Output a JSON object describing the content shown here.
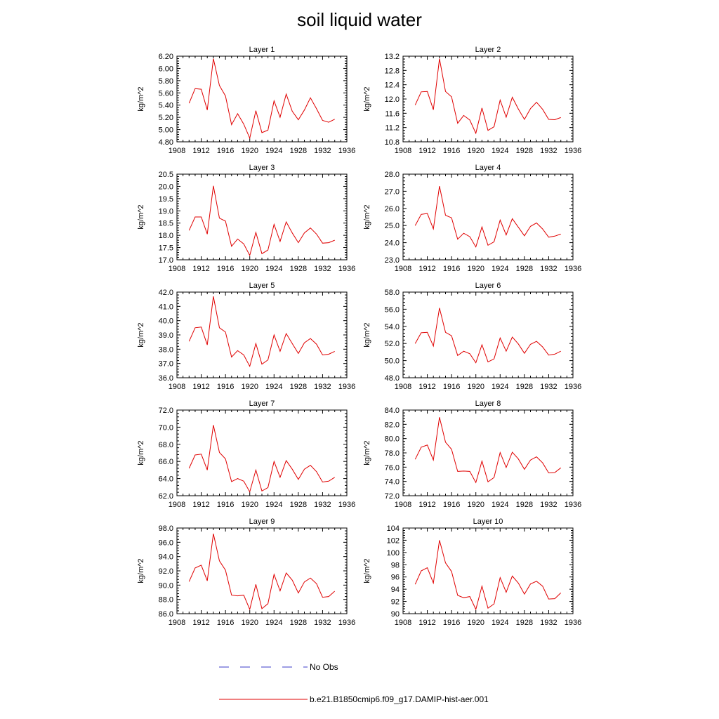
{
  "figure": {
    "title": "soil liquid water",
    "legend": [
      {
        "label": "No Obs",
        "color": "#3b3bc8",
        "style": "dashed"
      },
      {
        "label": "b.e21.B1850cmip6.f09_g17.DAMIP-hist-aer.001",
        "color": "#e00000",
        "style": "solid"
      }
    ]
  },
  "chart_data": [
    {
      "type": "line",
      "title": "Layer 1",
      "ylabel": "kg/m^2",
      "xlim": [
        1908,
        1936
      ],
      "xticks": [
        "1908",
        "1912",
        "1916",
        "1920",
        "1924",
        "1928",
        "1932",
        "1936"
      ],
      "ylim": [
        4.8,
        6.2
      ],
      "yticks": [
        "4.80",
        "5.00",
        "5.20",
        "5.40",
        "5.60",
        "5.80",
        "6.00",
        "6.20"
      ],
      "series": [
        {
          "color": "#e00000",
          "x": [
            1910,
            1911,
            1912,
            1913,
            1914,
            1915,
            1916,
            1917,
            1918,
            1919,
            1920,
            1921,
            1922,
            1923,
            1924,
            1925,
            1926,
            1927,
            1928,
            1929,
            1930,
            1931,
            1932,
            1933,
            1934
          ],
          "values": [
            5.43,
            5.67,
            5.66,
            5.32,
            6.16,
            5.72,
            5.55,
            5.08,
            5.26,
            5.09,
            4.86,
            5.31,
            4.95,
            4.99,
            5.47,
            5.2,
            5.58,
            5.3,
            5.16,
            5.32,
            5.52,
            5.34,
            5.15,
            5.12,
            5.17
          ]
        }
      ]
    },
    {
      "type": "line",
      "title": "Layer 2",
      "ylabel": "kg/m^2",
      "xlim": [
        1908,
        1936
      ],
      "xticks": [
        "1908",
        "1912",
        "1916",
        "1920",
        "1924",
        "1928",
        "1932",
        "1936"
      ],
      "ylim": [
        10.8,
        13.2
      ],
      "yticks": [
        "10.8",
        "11.2",
        "11.6",
        "12.0",
        "12.4",
        "12.8",
        "13.2"
      ],
      "series": [
        {
          "color": "#e00000",
          "x": [
            1910,
            1911,
            1912,
            1913,
            1914,
            1915,
            1916,
            1917,
            1918,
            1919,
            1920,
            1921,
            1922,
            1923,
            1924,
            1925,
            1926,
            1927,
            1928,
            1929,
            1930,
            1931,
            1932,
            1933,
            1934
          ],
          "values": [
            11.83,
            12.2,
            12.21,
            11.7,
            13.13,
            12.21,
            12.06,
            11.32,
            11.54,
            11.41,
            11.04,
            11.75,
            11.12,
            11.22,
            11.97,
            11.49,
            12.05,
            11.72,
            11.43,
            11.73,
            11.91,
            11.71,
            11.43,
            11.42,
            11.48
          ]
        }
      ]
    },
    {
      "type": "line",
      "title": "Layer 3",
      "ylabel": "kg/m^2",
      "xlim": [
        1908,
        1936
      ],
      "xticks": [
        "1908",
        "1912",
        "1916",
        "1920",
        "1924",
        "1928",
        "1932",
        "1936"
      ],
      "ylim": [
        17.0,
        20.5
      ],
      "yticks": [
        "17.0",
        "17.5",
        "18.0",
        "18.5",
        "19.0",
        "19.5",
        "20.0",
        "20.5"
      ],
      "series": [
        {
          "color": "#e00000",
          "x": [
            1910,
            1911,
            1912,
            1913,
            1914,
            1915,
            1916,
            1917,
            1918,
            1919,
            1920,
            1921,
            1922,
            1923,
            1924,
            1925,
            1926,
            1927,
            1928,
            1929,
            1930,
            1931,
            1932,
            1933,
            1934
          ],
          "values": [
            18.2,
            18.75,
            18.75,
            18.05,
            20.02,
            18.7,
            18.58,
            17.55,
            17.85,
            17.65,
            17.18,
            18.12,
            17.25,
            17.4,
            18.45,
            17.75,
            18.55,
            18.1,
            17.7,
            18.1,
            18.3,
            18.05,
            17.68,
            17.7,
            17.8
          ]
        }
      ]
    },
    {
      "type": "line",
      "title": "Layer 4",
      "ylabel": "kg/m^2",
      "xlim": [
        1908,
        1936
      ],
      "xticks": [
        "1908",
        "1912",
        "1916",
        "1920",
        "1924",
        "1928",
        "1932",
        "1936"
      ],
      "ylim": [
        23.0,
        28.0
      ],
      "yticks": [
        "23.0",
        "24.0",
        "25.0",
        "26.0",
        "27.0",
        "28.0"
      ],
      "series": [
        {
          "color": "#e00000",
          "x": [
            1910,
            1911,
            1912,
            1913,
            1914,
            1915,
            1916,
            1917,
            1918,
            1919,
            1920,
            1921,
            1922,
            1923,
            1924,
            1925,
            1926,
            1927,
            1928,
            1929,
            1930,
            1931,
            1932,
            1933,
            1934
          ],
          "values": [
            25.0,
            25.65,
            25.7,
            24.8,
            27.3,
            25.6,
            25.45,
            24.2,
            24.55,
            24.35,
            23.75,
            24.92,
            23.85,
            24.05,
            25.32,
            24.45,
            25.4,
            24.9,
            24.4,
            24.95,
            25.15,
            24.8,
            24.32,
            24.38,
            24.5
          ]
        }
      ]
    },
    {
      "type": "line",
      "title": "Layer 5",
      "ylabel": "kg/m^2",
      "xlim": [
        1908,
        1936
      ],
      "xticks": [
        "1908",
        "1912",
        "1916",
        "1920",
        "1924",
        "1928",
        "1932",
        "1936"
      ],
      "ylim": [
        36.0,
        42.0
      ],
      "yticks": [
        "36.0",
        "37.0",
        "38.0",
        "39.0",
        "40.0",
        "41.0",
        "42.0"
      ],
      "series": [
        {
          "color": "#e00000",
          "x": [
            1910,
            1911,
            1912,
            1913,
            1914,
            1915,
            1916,
            1917,
            1918,
            1919,
            1920,
            1921,
            1922,
            1923,
            1924,
            1925,
            1926,
            1927,
            1928,
            1929,
            1930,
            1931,
            1932,
            1933,
            1934
          ],
          "values": [
            38.55,
            39.5,
            39.55,
            38.3,
            41.7,
            39.5,
            39.2,
            37.45,
            37.9,
            37.6,
            36.8,
            38.4,
            36.95,
            37.25,
            39.0,
            37.85,
            39.1,
            38.4,
            37.7,
            38.45,
            38.75,
            38.35,
            37.6,
            37.65,
            37.85
          ]
        }
      ]
    },
    {
      "type": "line",
      "title": "Layer 6",
      "ylabel": "kg/m^2",
      "xlim": [
        1908,
        1936
      ],
      "xticks": [
        "1908",
        "1912",
        "1916",
        "1920",
        "1924",
        "1928",
        "1932",
        "1936"
      ],
      "ylim": [
        48.0,
        58.0
      ],
      "yticks": [
        "48.0",
        "50.0",
        "52.0",
        "54.0",
        "56.0",
        "58.0"
      ],
      "series": [
        {
          "color": "#e00000",
          "x": [
            1910,
            1911,
            1912,
            1913,
            1914,
            1915,
            1916,
            1917,
            1918,
            1919,
            1920,
            1921,
            1922,
            1923,
            1924,
            1925,
            1926,
            1927,
            1928,
            1929,
            1930,
            1931,
            1932,
            1933,
            1934
          ],
          "values": [
            52.0,
            53.25,
            53.3,
            51.7,
            56.15,
            53.3,
            52.9,
            50.6,
            51.1,
            50.8,
            49.75,
            51.85,
            49.85,
            50.2,
            52.65,
            51.1,
            52.75,
            51.95,
            50.85,
            51.9,
            52.25,
            51.6,
            50.65,
            50.75,
            51.1
          ]
        }
      ]
    },
    {
      "type": "line",
      "title": "Layer 7",
      "ylabel": "kg/m^2",
      "xlim": [
        1908,
        1936
      ],
      "xticks": [
        "1908",
        "1912",
        "1916",
        "1920",
        "1924",
        "1928",
        "1932",
        "1936"
      ],
      "ylim": [
        62.0,
        72.0
      ],
      "yticks": [
        "62.0",
        "64.0",
        "66.0",
        "68.0",
        "70.0",
        "72.0"
      ],
      "series": [
        {
          "color": "#e00000",
          "x": [
            1910,
            1911,
            1912,
            1913,
            1914,
            1915,
            1916,
            1917,
            1918,
            1919,
            1920,
            1921,
            1922,
            1923,
            1924,
            1925,
            1926,
            1927,
            1928,
            1929,
            1930,
            1931,
            1932,
            1933,
            1934
          ],
          "values": [
            65.2,
            66.75,
            66.85,
            65.0,
            70.25,
            67.05,
            66.3,
            63.65,
            64.0,
            63.7,
            62.45,
            65.0,
            62.55,
            62.95,
            66.0,
            64.15,
            66.1,
            65.1,
            63.9,
            65.1,
            65.55,
            64.8,
            63.6,
            63.7,
            64.15
          ]
        }
      ]
    },
    {
      "type": "line",
      "title": "Layer 8",
      "ylabel": "kg/m^2",
      "xlim": [
        1908,
        1936
      ],
      "xticks": [
        "1908",
        "1912",
        "1916",
        "1920",
        "1924",
        "1928",
        "1932",
        "1936"
      ],
      "ylim": [
        72.0,
        84.0
      ],
      "yticks": [
        "72.0",
        "74.0",
        "76.0",
        "78.0",
        "80.0",
        "82.0",
        "84.0"
      ],
      "series": [
        {
          "color": "#e00000",
          "x": [
            1910,
            1911,
            1912,
            1913,
            1914,
            1915,
            1916,
            1917,
            1918,
            1919,
            1920,
            1921,
            1922,
            1923,
            1924,
            1925,
            1926,
            1927,
            1928,
            1929,
            1930,
            1931,
            1932,
            1933,
            1934
          ],
          "values": [
            77.1,
            78.8,
            79.1,
            77.0,
            83.0,
            79.5,
            78.5,
            75.4,
            75.45,
            75.4,
            73.85,
            76.85,
            73.95,
            74.55,
            78.05,
            75.95,
            78.1,
            77.15,
            75.7,
            77.0,
            77.45,
            76.6,
            75.2,
            75.25,
            75.9
          ]
        }
      ]
    },
    {
      "type": "line",
      "title": "Layer 9",
      "ylabel": "kg/m^2",
      "xlim": [
        1908,
        1936
      ],
      "xticks": [
        "1908",
        "1912",
        "1916",
        "1920",
        "1924",
        "1928",
        "1932",
        "1936"
      ],
      "ylim": [
        86.0,
        98.0
      ],
      "yticks": [
        "86.0",
        "88.0",
        "90.0",
        "92.0",
        "94.0",
        "96.0",
        "98.0"
      ],
      "series": [
        {
          "color": "#e00000",
          "x": [
            1910,
            1911,
            1912,
            1913,
            1914,
            1915,
            1916,
            1917,
            1918,
            1919,
            1920,
            1921,
            1922,
            1923,
            1924,
            1925,
            1926,
            1927,
            1928,
            1929,
            1930,
            1931,
            1932,
            1933,
            1934
          ],
          "values": [
            90.5,
            92.4,
            92.8,
            90.6,
            97.2,
            93.4,
            92.1,
            88.6,
            88.5,
            88.6,
            86.6,
            90.1,
            86.7,
            87.4,
            91.5,
            89.2,
            91.7,
            90.7,
            88.9,
            90.45,
            91.0,
            90.2,
            88.3,
            88.4,
            89.15
          ]
        }
      ]
    },
    {
      "type": "line",
      "title": "Layer 10",
      "ylabel": "kg/m^2",
      "xlim": [
        1908,
        1936
      ],
      "xticks": [
        "1908",
        "1912",
        "1916",
        "1920",
        "1924",
        "1928",
        "1932",
        "1936"
      ],
      "ylim": [
        90,
        104
      ],
      "yticks": [
        "90",
        "92",
        "94",
        "96",
        "98",
        "100",
        "102",
        "104"
      ],
      "series": [
        {
          "color": "#e00000",
          "x": [
            1910,
            1911,
            1912,
            1913,
            1914,
            1915,
            1916,
            1917,
            1918,
            1919,
            1920,
            1921,
            1922,
            1923,
            1924,
            1925,
            1926,
            1927,
            1928,
            1929,
            1930,
            1931,
            1932,
            1933,
            1934
          ],
          "values": [
            94.8,
            97.0,
            97.5,
            95.0,
            102.0,
            98.3,
            96.9,
            93.0,
            92.6,
            92.8,
            90.7,
            94.5,
            90.9,
            91.6,
            95.9,
            93.5,
            96.15,
            95.0,
            93.2,
            94.85,
            95.3,
            94.5,
            92.4,
            92.45,
            93.4
          ]
        }
      ]
    }
  ]
}
